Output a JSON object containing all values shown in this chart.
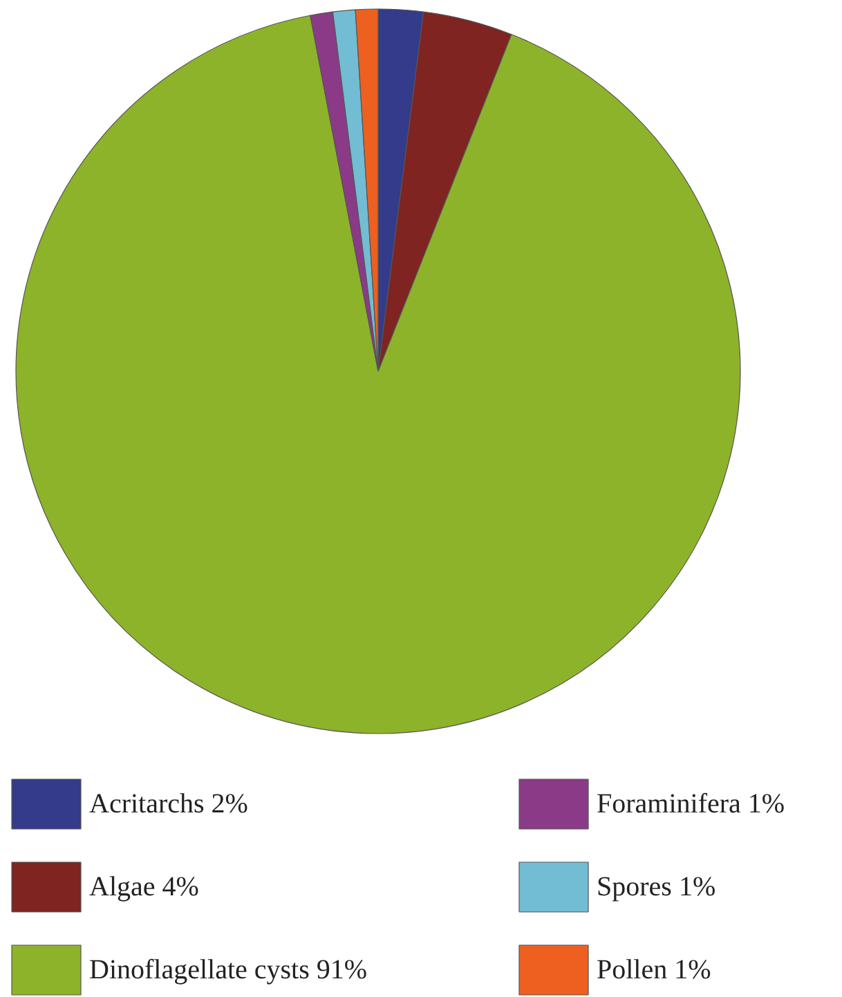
{
  "chart_data": {
    "type": "pie",
    "categories": [
      "Acritarchs",
      "Algae",
      "Dinoflagellate cysts",
      "Foraminifera",
      "Spores",
      "Pollen"
    ],
    "values": [
      2,
      4,
      91,
      1,
      1,
      1
    ],
    "colors": [
      "#333b8a",
      "#7f2421",
      "#8db32a",
      "#8b3a87",
      "#72bcd4",
      "#ee6020"
    ],
    "value_labels": [
      "2%",
      "4%",
      "91%",
      "1%",
      "1%",
      "1%"
    ],
    "legend": "bottom"
  }
}
